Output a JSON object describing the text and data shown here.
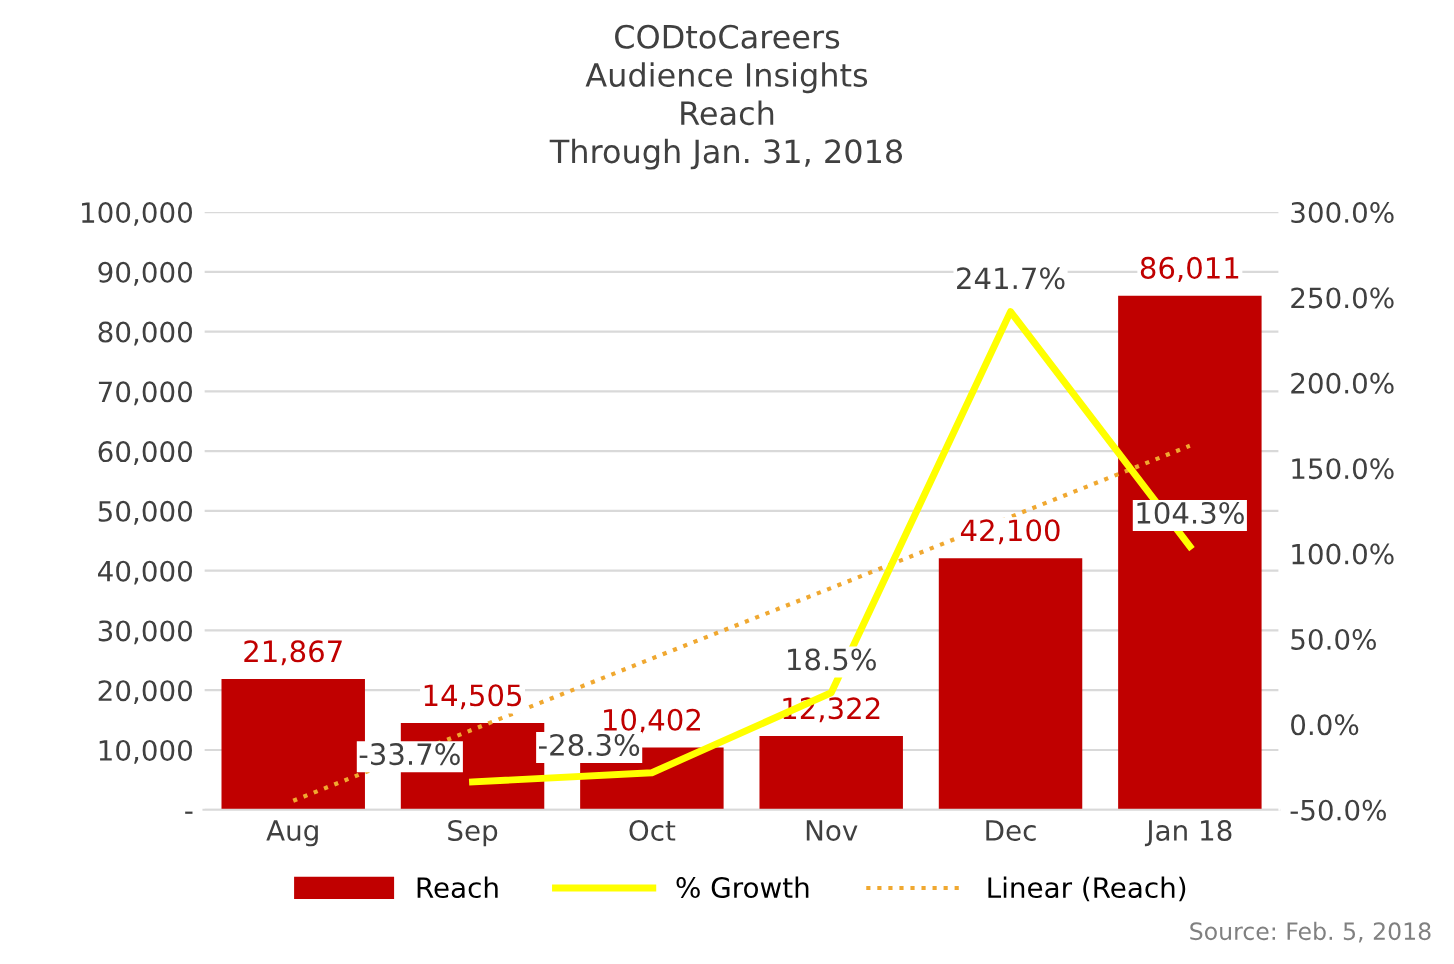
{
  "chart_data": {
    "type": "bar",
    "title": "CODtoCareers\nAudience Insights\nReach\nThrough Jan. 31, 2018",
    "categories": [
      "Aug",
      "Sep",
      "Oct",
      "Nov",
      "Dec",
      "Jan 18"
    ],
    "series": [
      {
        "name": "Reach",
        "color": "#c00000",
        "values": [
          21867,
          14505,
          10402,
          12322,
          42100,
          86011
        ],
        "value_labels": [
          "21,867",
          "14,505",
          "10,402",
          "12,322",
          "42,100",
          "86,011"
        ]
      },
      {
        "name": "% Growth",
        "type": "line",
        "axis": "y2",
        "color": "#ffff00",
        "values": [
          null,
          -33.7,
          -28.3,
          18.5,
          241.7,
          104.3
        ],
        "value_labels": [
          null,
          "-33.7%",
          "-28.3%",
          "18.5%",
          "241.7%",
          "104.3%"
        ]
      },
      {
        "name": "Linear (Reach)",
        "type": "line",
        "color": "#f0a830",
        "line_style": "dotted",
        "values": [
          1500,
          13400,
          25300,
          37100,
          49000,
          60900
        ]
      }
    ],
    "ylim": [
      0,
      100000
    ],
    "yticks": [
      {
        "value": 0,
        "label": "-"
      },
      {
        "value": 10000,
        "label": "10,000"
      },
      {
        "value": 20000,
        "label": "20,000"
      },
      {
        "value": 30000,
        "label": "30,000"
      },
      {
        "value": 40000,
        "label": "40,000"
      },
      {
        "value": 50000,
        "label": "50,000"
      },
      {
        "value": 60000,
        "label": "60,000"
      },
      {
        "value": 70000,
        "label": "70,000"
      },
      {
        "value": 80000,
        "label": "80,000"
      },
      {
        "value": 90000,
        "label": "90,000"
      },
      {
        "value": 100000,
        "label": "100,000"
      }
    ],
    "y2lim": [
      -50,
      300
    ],
    "y2ticks": [
      {
        "value": -50,
        "label": "-50.0%"
      },
      {
        "value": 0,
        "label": "0.0%"
      },
      {
        "value": 50,
        "label": "50.0%"
      },
      {
        "value": 100,
        "label": "100.0%"
      },
      {
        "value": 150,
        "label": "150.0%"
      },
      {
        "value": 200,
        "label": "200.0%"
      },
      {
        "value": 250,
        "label": "250.0%"
      },
      {
        "value": 300,
        "label": "300.0%"
      }
    ],
    "grid": "y",
    "legend": "bottom",
    "annotations": [
      "Source: Feb. 5, 2018"
    ]
  }
}
